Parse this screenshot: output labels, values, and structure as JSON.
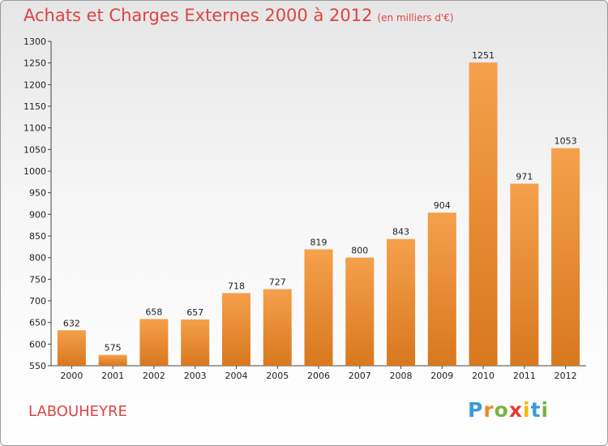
{
  "header": {
    "title": "Achats et Charges Externes 2000 à 2012",
    "unit": "(en milliers d'€)"
  },
  "footer": {
    "place": "LABOUHEYRE",
    "brand": "Proxiti"
  },
  "chart_data": {
    "type": "bar",
    "title": "Achats et Charges Externes 2000 à 2012",
    "subtitle": "(en milliers d'€)",
    "categories": [
      "2000",
      "2001",
      "2002",
      "2003",
      "2004",
      "2005",
      "2006",
      "2007",
      "2008",
      "2009",
      "2010",
      "2011",
      "2012"
    ],
    "values": [
      632,
      575,
      658,
      657,
      718,
      727,
      819,
      800,
      843,
      904,
      1251,
      971,
      1053
    ],
    "ylim": [
      550,
      1300
    ],
    "yticks": [
      550,
      600,
      650,
      700,
      750,
      800,
      850,
      900,
      950,
      1000,
      1050,
      1100,
      1150,
      1200,
      1250,
      1300
    ],
    "grid": false,
    "bar_color": "#f5a04b",
    "bar_color_dark": "#d8781f"
  }
}
